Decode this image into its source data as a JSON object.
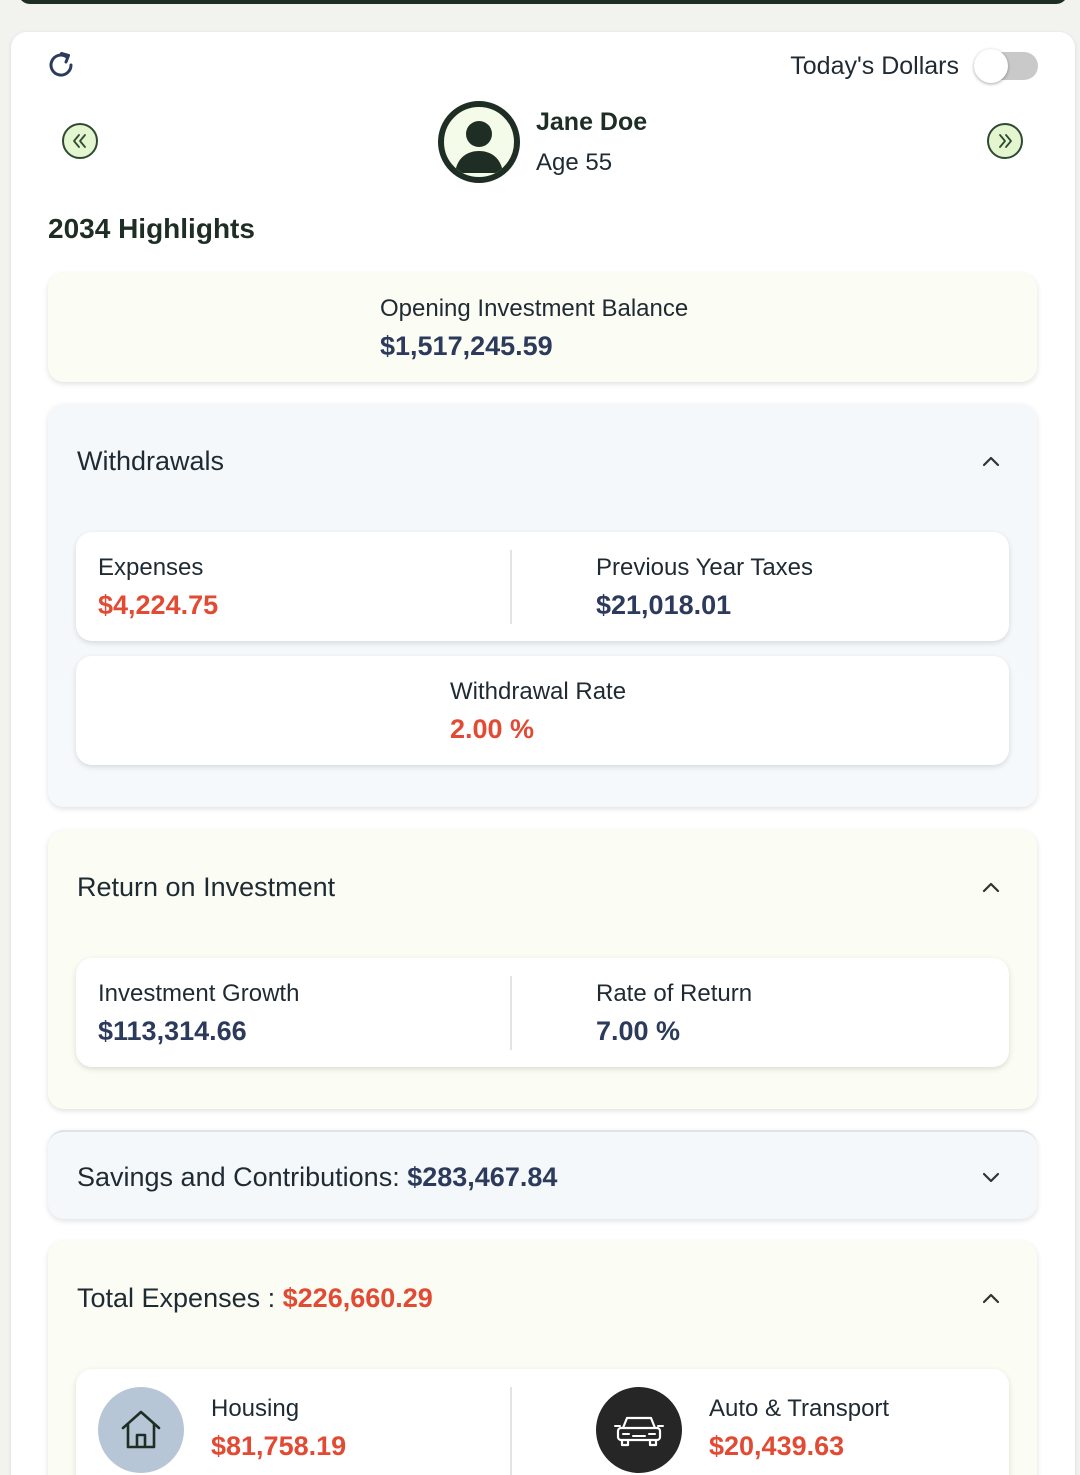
{
  "header": {
    "todays_dollars_label": "Today's Dollars",
    "todays_dollars_enabled": false,
    "user_name": "Jane Doe",
    "user_age": "Age 55"
  },
  "highlights_title": "2034 Highlights",
  "opening_balance": {
    "label": "Opening Investment Balance",
    "value": "$1,517,245.59"
  },
  "withdrawals": {
    "title": "Withdrawals",
    "expanded": true,
    "expenses_label": "Expenses",
    "expenses_value": "$4,224.75",
    "taxes_label": "Previous Year Taxes",
    "taxes_value": "$21,018.01",
    "rate_label": "Withdrawal Rate",
    "rate_value": "2.00 %"
  },
  "roi": {
    "title": "Return on Investment",
    "expanded": true,
    "growth_label": "Investment Growth",
    "growth_value": "$113,314.66",
    "rate_label": "Rate of Return",
    "rate_value": "7.00 %"
  },
  "savings": {
    "title": "Savings and Contributions:",
    "value": "$283,467.84",
    "expanded": false
  },
  "total_expenses": {
    "title": "Total Expenses :",
    "value": "$226,660.29",
    "expanded": true,
    "items": [
      {
        "label": "Housing",
        "value": "$81,758.19",
        "icon": "house-icon"
      },
      {
        "label": "Auto & Transport",
        "value": "$20,439.63",
        "icon": "car-icon"
      }
    ]
  },
  "colors": {
    "dark_green": "#1e2e24",
    "navy_value": "#2c3a5c",
    "red_value": "#e24a33",
    "nav_button_bg": "#e4f6cf"
  }
}
